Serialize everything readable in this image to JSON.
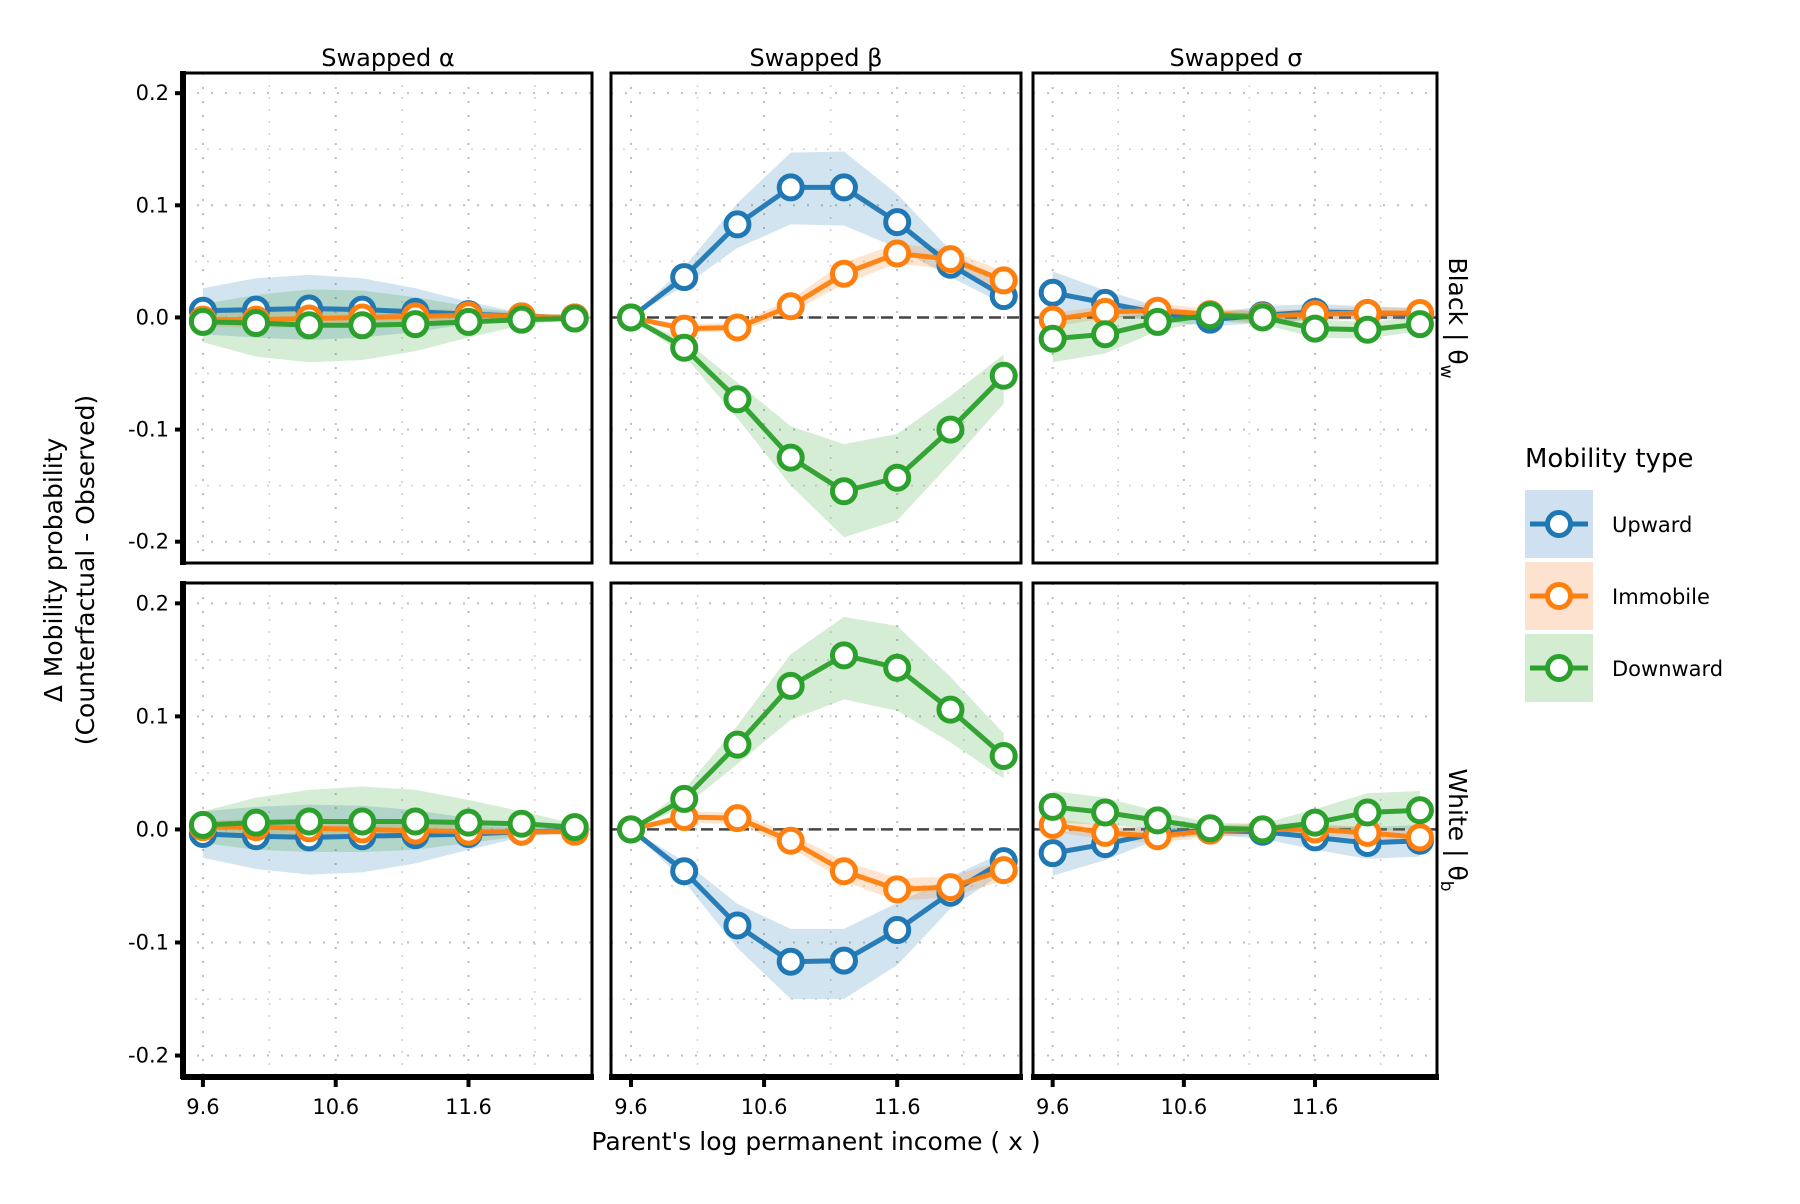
{
  "chart_data": {
    "type": "line",
    "layout": "facet-grid 2 rows x 3 columns",
    "xlabel": "Parent's log permanent income ( x )",
    "ylabel_lines": [
      "Δ Mobility probability",
      "(Counterfactual - Observed)"
    ],
    "x": [
      9.6,
      10.0,
      10.4,
      10.8,
      11.2,
      11.6,
      12.0,
      12.4
    ],
    "x_ticks": [
      9.6,
      10.6,
      11.6
    ],
    "x_tick_labels": [
      "9.6",
      "10.6",
      "11.6"
    ],
    "xlim": [
      9.45,
      12.53
    ],
    "y_ticks": [
      0.2,
      0.1,
      0.0,
      -0.1,
      -0.2
    ],
    "y_tick_labels": [
      "0.2",
      "0.1",
      "0.0",
      "-0.1",
      "-0.2"
    ],
    "ylim": [
      -0.219,
      0.218
    ],
    "grid": true,
    "reference_line": 0.0,
    "columns": [
      "Swapped α",
      "Swapped β",
      "Swapped σ"
    ],
    "rows": [
      {
        "label": "Black | θ",
        "subscript": "w"
      },
      {
        "label": "White | θ",
        "subscript": "b"
      }
    ],
    "legend": {
      "title": "Mobility type",
      "placement": "right",
      "entries": [
        {
          "name": "Upward",
          "color": "#1f77b4",
          "band_color": "#cfe1f0"
        },
        {
          "name": "Immobile",
          "color": "#ff7f0e",
          "band_color": "#fde3cf"
        },
        {
          "name": "Downward",
          "color": "#2ca02c",
          "band_color": "#d4ecd2"
        }
      ]
    },
    "panels": [
      {
        "row": 0,
        "col": 0,
        "show_zero_line": false,
        "series": [
          {
            "name": "Upward",
            "values": [
              0.006,
              0.007,
              0.008,
              0.007,
              0.005,
              0.003,
              0.001,
              0.0
            ],
            "lower": [
              -0.015,
              -0.018,
              -0.02,
              -0.018,
              -0.013,
              -0.006,
              -0.002,
              -0.001
            ],
            "upper": [
              0.026,
              0.035,
              0.038,
              0.035,
              0.026,
              0.014,
              0.004,
              0.001
            ]
          },
          {
            "name": "Immobile",
            "values": [
              -0.002,
              -0.002,
              -0.001,
              0.0,
              0.001,
              0.002,
              0.001,
              0.0
            ],
            "lower": [
              -0.008,
              -0.009,
              -0.009,
              -0.008,
              -0.006,
              -0.003,
              -0.002,
              -0.001
            ],
            "upper": [
              0.004,
              0.005,
              0.007,
              0.008,
              0.008,
              0.007,
              0.004,
              0.001
            ]
          },
          {
            "name": "Downward",
            "values": [
              -0.004,
              -0.005,
              -0.007,
              -0.007,
              -0.006,
              -0.004,
              -0.002,
              -0.001
            ],
            "lower": [
              -0.022,
              -0.035,
              -0.04,
              -0.038,
              -0.03,
              -0.018,
              -0.007,
              -0.002
            ],
            "upper": [
              0.012,
              0.02,
              0.025,
              0.024,
              0.018,
              0.01,
              0.004,
              0.001
            ]
          }
        ]
      },
      {
        "row": 0,
        "col": 1,
        "show_zero_line": true,
        "series": [
          {
            "name": "Upward",
            "values": [
              0.0,
              0.036,
              0.083,
              0.116,
              0.116,
              0.085,
              0.047,
              0.019
            ],
            "lower": [
              0.0,
              0.028,
              0.062,
              0.083,
              0.082,
              0.062,
              0.036,
              0.012
            ],
            "upper": [
              0.0,
              0.045,
              0.102,
              0.147,
              0.148,
              0.11,
              0.06,
              0.028
            ]
          },
          {
            "name": "Immobile",
            "values": [
              0.0,
              -0.01,
              -0.009,
              0.01,
              0.039,
              0.057,
              0.052,
              0.033
            ],
            "lower": [
              0.0,
              -0.013,
              -0.013,
              0.004,
              0.03,
              0.048,
              0.043,
              0.024
            ],
            "upper": [
              0.0,
              -0.006,
              -0.005,
              0.016,
              0.049,
              0.066,
              0.06,
              0.041
            ]
          },
          {
            "name": "Downward",
            "values": [
              0.0,
              -0.027,
              -0.073,
              -0.125,
              -0.155,
              -0.143,
              -0.1,
              -0.052
            ],
            "lower": [
              0.0,
              -0.034,
              -0.09,
              -0.15,
              -0.196,
              -0.181,
              -0.13,
              -0.077
            ],
            "upper": [
              0.0,
              -0.02,
              -0.058,
              -0.097,
              -0.113,
              -0.104,
              -0.07,
              -0.033
            ]
          }
        ]
      },
      {
        "row": 0,
        "col": 2,
        "show_zero_line": true,
        "series": [
          {
            "name": "Upward",
            "values": [
              0.022,
              0.013,
              0.004,
              -0.002,
              0.002,
              0.005,
              0.004,
              0.003
            ],
            "lower": [
              0.002,
              0.002,
              -0.003,
              -0.008,
              -0.005,
              -0.002,
              -0.002,
              -0.002
            ],
            "upper": [
              0.041,
              0.024,
              0.01,
              0.004,
              0.01,
              0.012,
              0.01,
              0.008
            ]
          },
          {
            "name": "Immobile",
            "values": [
              -0.002,
              0.005,
              0.006,
              0.003,
              0.001,
              0.003,
              0.004,
              0.004
            ],
            "lower": [
              -0.008,
              -0.001,
              0.0,
              -0.002,
              -0.004,
              -0.002,
              -0.001,
              -0.001
            ],
            "upper": [
              0.004,
              0.01,
              0.012,
              0.008,
              0.006,
              0.008,
              0.009,
              0.009
            ]
          },
          {
            "name": "Downward",
            "values": [
              -0.019,
              -0.015,
              -0.004,
              0.002,
              0.0,
              -0.01,
              -0.011,
              -0.006
            ],
            "lower": [
              -0.04,
              -0.032,
              -0.012,
              -0.003,
              -0.006,
              -0.018,
              -0.019,
              -0.012
            ],
            "upper": [
              0.0,
              0.0,
              0.004,
              0.006,
              0.006,
              -0.002,
              -0.004,
              0.0
            ]
          }
        ]
      },
      {
        "row": 1,
        "col": 0,
        "show_zero_line": false,
        "series": [
          {
            "name": "Upward",
            "values": [
              -0.004,
              -0.006,
              -0.007,
              -0.006,
              -0.005,
              -0.004,
              -0.002,
              -0.001
            ],
            "lower": [
              -0.025,
              -0.035,
              -0.04,
              -0.038,
              -0.03,
              -0.018,
              -0.007,
              -0.002
            ],
            "upper": [
              0.016,
              0.02,
              0.022,
              0.021,
              0.017,
              0.01,
              0.004,
              0.001
            ]
          },
          {
            "name": "Immobile",
            "values": [
              0.002,
              0.002,
              0.001,
              0.0,
              -0.001,
              -0.002,
              -0.002,
              -0.002
            ],
            "lower": [
              -0.004,
              -0.005,
              -0.007,
              -0.008,
              -0.008,
              -0.007,
              -0.005,
              -0.003
            ],
            "upper": [
              0.008,
              0.009,
              0.009,
              0.008,
              0.006,
              0.003,
              0.001,
              0.0
            ]
          },
          {
            "name": "Downward",
            "values": [
              0.004,
              0.006,
              0.007,
              0.007,
              0.007,
              0.006,
              0.005,
              0.002
            ],
            "lower": [
              -0.012,
              -0.018,
              -0.02,
              -0.02,
              -0.018,
              -0.012,
              -0.006,
              -0.002
            ],
            "upper": [
              0.016,
              0.028,
              0.035,
              0.038,
              0.035,
              0.026,
              0.016,
              0.005
            ]
          }
        ]
      },
      {
        "row": 1,
        "col": 1,
        "show_zero_line": true,
        "series": [
          {
            "name": "Upward",
            "values": [
              0.0,
              -0.037,
              -0.085,
              -0.117,
              -0.116,
              -0.089,
              -0.056,
              -0.028
            ],
            "lower": [
              0.0,
              -0.046,
              -0.105,
              -0.15,
              -0.15,
              -0.12,
              -0.07,
              -0.038
            ],
            "upper": [
              0.0,
              -0.028,
              -0.066,
              -0.088,
              -0.088,
              -0.065,
              -0.042,
              -0.02
            ]
          },
          {
            "name": "Immobile",
            "values": [
              0.0,
              0.011,
              0.01,
              -0.01,
              -0.037,
              -0.053,
              -0.051,
              -0.036
            ],
            "lower": [
              0.0,
              0.006,
              0.005,
              -0.016,
              -0.046,
              -0.063,
              -0.06,
              -0.045
            ],
            "upper": [
              0.0,
              0.016,
              0.015,
              -0.004,
              -0.028,
              -0.043,
              -0.042,
              -0.027
            ]
          },
          {
            "name": "Downward",
            "values": [
              0.0,
              0.027,
              0.075,
              0.127,
              0.154,
              0.143,
              0.106,
              0.065
            ],
            "lower": [
              0.0,
              0.02,
              0.058,
              0.097,
              0.115,
              0.105,
              0.077,
              0.045
            ],
            "upper": [
              0.0,
              0.035,
              0.092,
              0.155,
              0.188,
              0.18,
              0.135,
              0.085
            ]
          }
        ]
      },
      {
        "row": 1,
        "col": 2,
        "show_zero_line": true,
        "series": [
          {
            "name": "Upward",
            "values": [
              -0.021,
              -0.013,
              -0.003,
              -0.001,
              -0.002,
              -0.007,
              -0.012,
              -0.01
            ],
            "lower": [
              -0.041,
              -0.027,
              -0.009,
              -0.005,
              -0.008,
              -0.018,
              -0.026,
              -0.024
            ],
            "upper": [
              -0.002,
              0.0,
              0.003,
              0.004,
              0.003,
              0.003,
              0.002,
              0.004
            ]
          },
          {
            "name": "Immobile",
            "values": [
              0.004,
              -0.003,
              -0.006,
              -0.001,
              0.0,
              0.0,
              -0.003,
              -0.007
            ],
            "lower": [
              -0.002,
              -0.009,
              -0.012,
              -0.006,
              -0.005,
              -0.005,
              -0.008,
              -0.012
            ],
            "upper": [
              0.01,
              0.003,
              0.0,
              0.004,
              0.005,
              0.005,
              0.002,
              -0.002
            ]
          },
          {
            "name": "Downward",
            "values": [
              0.02,
              0.015,
              0.008,
              0.001,
              0.0,
              0.006,
              0.015,
              0.017
            ],
            "lower": [
              0.006,
              0.004,
              0.0,
              -0.003,
              -0.004,
              -0.004,
              -0.001,
              0.0
            ],
            "upper": [
              0.034,
              0.028,
              0.016,
              0.006,
              0.005,
              0.018,
              0.032,
              0.034
            ]
          }
        ]
      }
    ]
  }
}
